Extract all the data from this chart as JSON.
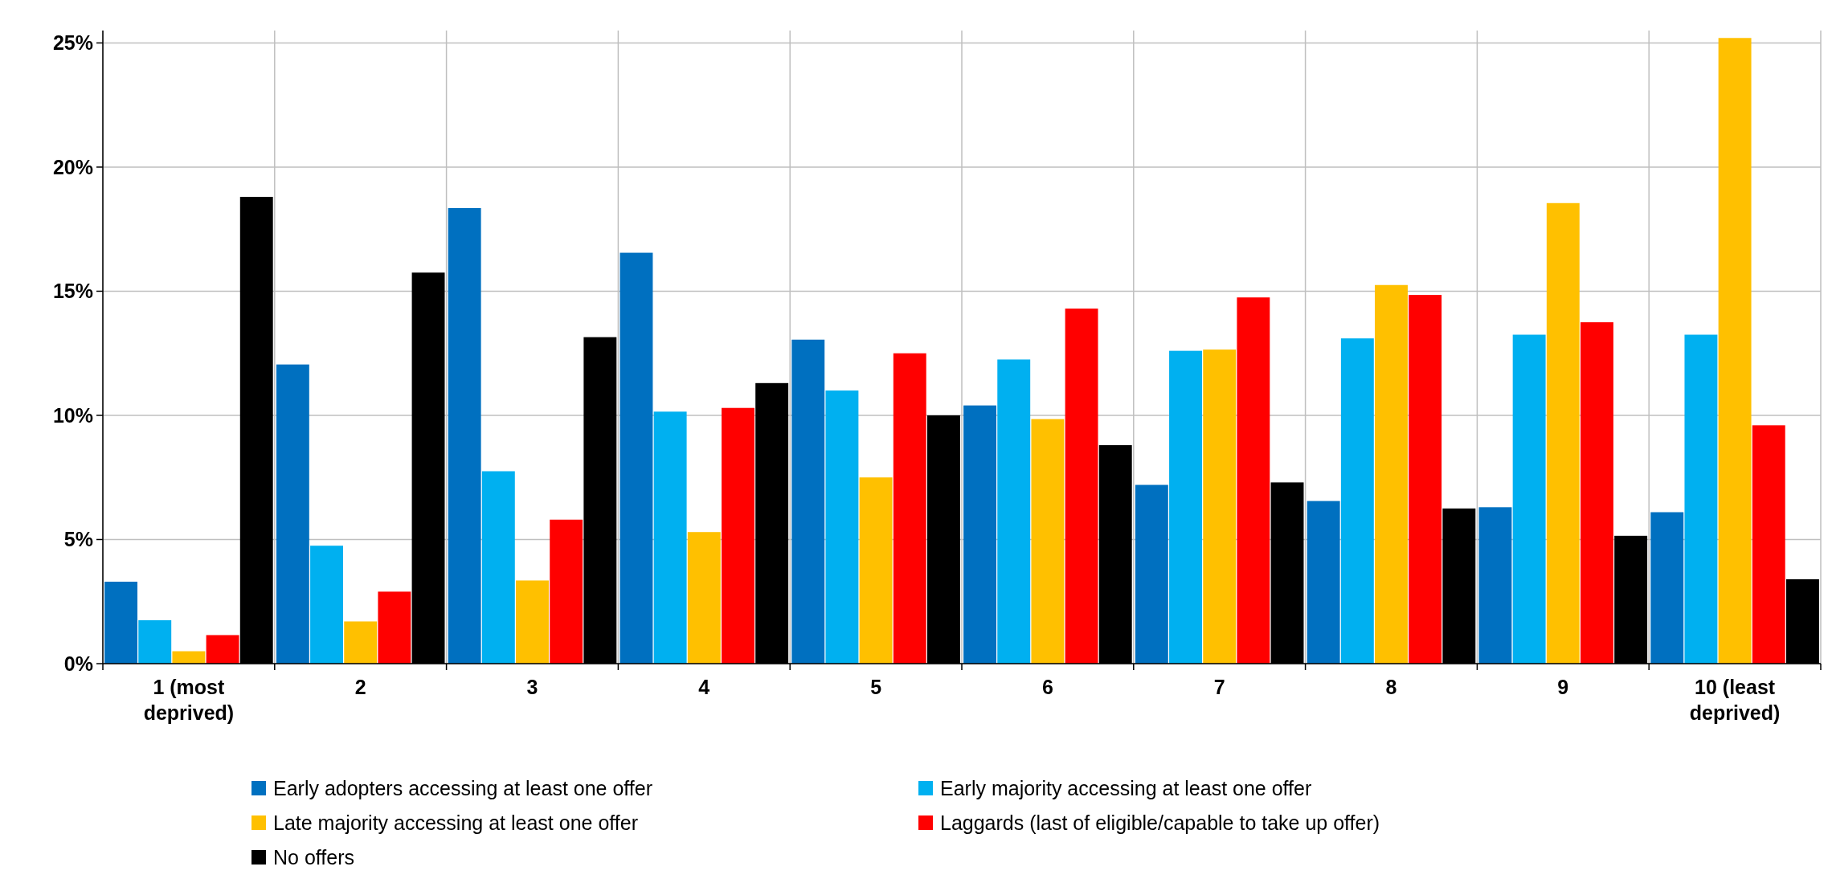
{
  "chart_data": {
    "type": "bar",
    "categories": [
      "1 (most deprived)",
      "2",
      "3",
      "4",
      "5",
      "6",
      "7",
      "8",
      "9",
      "10 (least deprived)"
    ],
    "series": [
      {
        "name": "Early adopters accessing at least one offer",
        "color": "#0070c0",
        "values": [
          3.3,
          12.05,
          18.35,
          16.55,
          13.05,
          10.4,
          7.2,
          6.55,
          6.3,
          6.1
        ]
      },
      {
        "name": "Early majority accessing at least one offer",
        "color": "#00b0f0",
        "values": [
          1.75,
          4.75,
          7.75,
          10.15,
          11.0,
          12.25,
          12.6,
          13.1,
          13.25,
          13.25
        ]
      },
      {
        "name": "Late majority accessing at least one offer",
        "color": "#ffc000",
        "values": [
          0.5,
          1.7,
          3.35,
          5.3,
          7.5,
          9.85,
          12.65,
          15.25,
          18.55,
          25.2
        ]
      },
      {
        "name": "Laggards (last of eligible/capable to take up offer)",
        "color": "#ff0000",
        "values": [
          1.15,
          2.9,
          5.8,
          10.3,
          12.5,
          14.3,
          14.75,
          14.85,
          13.75,
          9.6
        ]
      },
      {
        "name": "No offers",
        "color": "#000000",
        "values": [
          18.8,
          15.75,
          13.15,
          11.3,
          10.0,
          8.8,
          7.3,
          6.25,
          5.15,
          3.4
        ]
      }
    ],
    "ylim": [
      0,
      25.5
    ],
    "yticks": [
      {
        "value": 0,
        "label": "0%"
      },
      {
        "value": 5,
        "label": "5%"
      },
      {
        "value": 10,
        "label": "10%"
      },
      {
        "value": 15,
        "label": "15%"
      },
      {
        "value": 20,
        "label": "20%"
      },
      {
        "value": 25,
        "label": "25%"
      }
    ],
    "grid": true,
    "legend": "bottom"
  }
}
